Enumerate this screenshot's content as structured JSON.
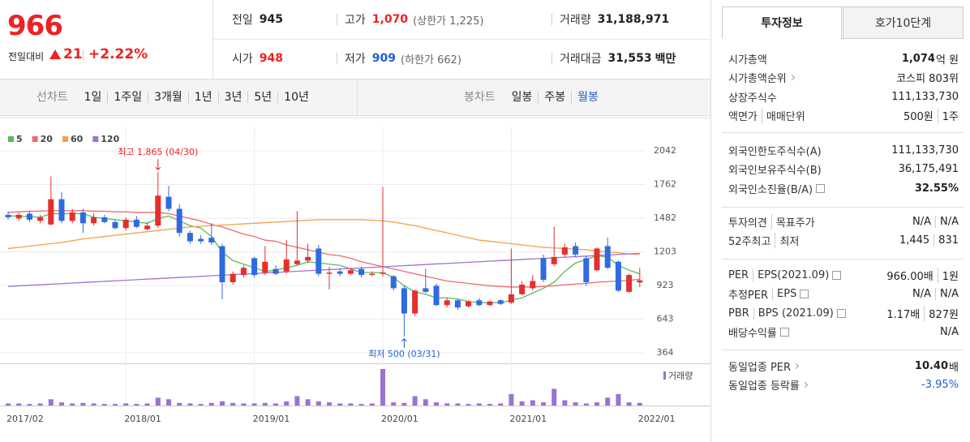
{
  "header": {
    "price": "966",
    "change_label": "전일대비",
    "change": "21",
    "change_pct": "+2.22%",
    "stats": [
      [
        {
          "label": "전일",
          "value": "945"
        },
        {
          "label": "고가",
          "value": "1,070",
          "note": "(상한가 1,225)"
        },
        {
          "label": "거래량",
          "value": "31,188,971"
        }
      ],
      [
        {
          "label": "시가",
          "value": "948"
        },
        {
          "label": "저가",
          "value": "909",
          "note": "(하한가 662)"
        },
        {
          "label": "거래대금",
          "value": "31,553",
          "unit": "백만"
        }
      ]
    ]
  },
  "periods": {
    "line_label": "선차트",
    "line": [
      "1일",
      "1주일",
      "3개월",
      "1년",
      "3년",
      "5년",
      "10년"
    ],
    "candle_label": "봉차트",
    "candle": [
      "일봉",
      "주봉",
      "월봉"
    ]
  },
  "chart_data": {
    "type": "candlestick",
    "categories": [
      "2017/02",
      null,
      null,
      null,
      null,
      null,
      null,
      null,
      null,
      null,
      null,
      "2018/01",
      null,
      null,
      null,
      null,
      null,
      null,
      null,
      null,
      null,
      null,
      null,
      "2019/01",
      null,
      null,
      null,
      null,
      null,
      null,
      null,
      null,
      null,
      null,
      null,
      "2020/01",
      null,
      null,
      null,
      null,
      null,
      null,
      null,
      null,
      null,
      null,
      null,
      "2021/01",
      null,
      null,
      null,
      null,
      null,
      null,
      null,
      null,
      null,
      null,
      null,
      "2022/01"
    ],
    "open": [
      1510,
      1480,
      1520,
      1460,
      1430,
      1640,
      1460,
      1530,
      1440,
      1490,
      1450,
      1400,
      1470,
      1390,
      1420,
      1660,
      1560,
      1360,
      1310,
      1320,
      1250,
      950,
      1010,
      1150,
      1030,
      1060,
      1040,
      1100,
      1130,
      1230,
      1020,
      1040,
      1020,
      1060,
      1010,
      1020,
      1000,
      900,
      690,
      900,
      920,
      760,
      800,
      750,
      800,
      760,
      800,
      780,
      850,
      900,
      1150,
      1100,
      1180,
      1250,
      1150,
      1050,
      1250,
      1120,
      870,
      948
    ],
    "high": [
      1540,
      1530,
      1540,
      1510,
      1830,
      1700,
      1560,
      1560,
      1520,
      1510,
      1470,
      1490,
      1500,
      1450,
      1865,
      1750,
      1600,
      1380,
      1340,
      1440,
      1270,
      1040,
      1090,
      1160,
      1250,
      1090,
      1300,
      1540,
      1270,
      1260,
      1080,
      1060,
      1070,
      1080,
      1040,
      1740,
      1010,
      920,
      890,
      1060,
      940,
      820,
      810,
      800,
      820,
      800,
      810,
      1230,
      960,
      1010,
      1180,
      1410,
      1270,
      1280,
      1170,
      1240,
      1320,
      1130,
      1020,
      1070
    ],
    "low": [
      1470,
      1460,
      1450,
      1440,
      1420,
      1440,
      1440,
      1360,
      1420,
      1440,
      1390,
      1380,
      1400,
      1380,
      1400,
      1540,
      1330,
      1270,
      1270,
      1260,
      810,
      930,
      990,
      990,
      1010,
      1010,
      1020,
      1090,
      1110,
      1000,
      890,
      1000,
      1010,
      990,
      1000,
      1000,
      880,
      500,
      670,
      860,
      750,
      740,
      720,
      740,
      750,
      750,
      760,
      770,
      840,
      880,
      950,
      1080,
      1160,
      1160,
      920,
      1040,
      1060,
      870,
      860,
      909
    ],
    "close": [
      1490,
      1510,
      1470,
      1490,
      1640,
      1460,
      1530,
      1440,
      1490,
      1450,
      1400,
      1470,
      1410,
      1420,
      1670,
      1560,
      1360,
      1290,
      1290,
      1280,
      950,
      1020,
      1070,
      1010,
      1120,
      1020,
      1140,
      1130,
      1160,
      1020,
      1030,
      1020,
      1050,
      1010,
      1020,
      1030,
      900,
      690,
      880,
      870,
      760,
      800,
      740,
      790,
      760,
      790,
      770,
      850,
      930,
      960,
      970,
      1160,
      1240,
      1180,
      950,
      1230,
      1070,
      880,
      1010,
      966
    ],
    "up_color": "#e52e2e",
    "down_color": "#2e6be0",
    "series": [
      {
        "name": "5",
        "color": "#5cb85c",
        "values": [
          1500,
          1500,
          1495,
          1490,
          1520,
          1520,
          1520,
          1520,
          1490,
          1480,
          1470,
          1460,
          1450,
          1440,
          1480,
          1500,
          1460,
          1420,
          1400,
          1330,
          1200,
          1130,
          1100,
          1070,
          1040,
          1050,
          1070,
          1090,
          1120,
          1110,
          1100,
          1090,
          1060,
          1030,
          1030,
          1030,
          990,
          920,
          870,
          850,
          820,
          820,
          810,
          790,
          780,
          780,
          780,
          800,
          820,
          860,
          900,
          950,
          1040,
          1110,
          1140,
          1170,
          1160,
          1090,
          1050,
          1020
        ]
      },
      {
        "name": "20",
        "color": "#f06a6a",
        "values": [
          1530,
          1535,
          1540,
          1540,
          1545,
          1545,
          1545,
          1545,
          1540,
          1540,
          1535,
          1535,
          1530,
          1530,
          1530,
          1520,
          1500,
          1480,
          1460,
          1430,
          1410,
          1380,
          1350,
          1330,
          1300,
          1290,
          1260,
          1240,
          1220,
          1200,
          1180,
          1170,
          1150,
          1120,
          1100,
          1080,
          1060,
          1040,
          1020,
          1000,
          980,
          960,
          950,
          940,
          930,
          920,
          915,
          910,
          910,
          910,
          915,
          920,
          930,
          935,
          940,
          950,
          955,
          960,
          965,
          975
        ]
      },
      {
        "name": "60",
        "color": "#f5a04a",
        "values": [
          1230,
          1240,
          1250,
          1260,
          1270,
          1280,
          1295,
          1310,
          1320,
          1330,
          1340,
          1350,
          1360,
          1370,
          1380,
          1390,
          1400,
          1410,
          1415,
          1420,
          1425,
          1430,
          1435,
          1440,
          1445,
          1450,
          1455,
          1460,
          1465,
          1470,
          1470,
          1470,
          1470,
          1470,
          1465,
          1460,
          1450,
          1435,
          1420,
          1400,
          1380,
          1360,
          1340,
          1320,
          1300,
          1290,
          1280,
          1270,
          1260,
          1250,
          1240,
          1235,
          1230,
          1225,
          1220,
          1210,
          1200,
          1195,
          1185,
          1180
        ]
      },
      {
        "name": "120",
        "color": "#a070d8",
        "values": [
          915,
          920,
          925,
          929,
          934,
          938,
          943,
          948,
          952,
          957,
          962,
          966,
          971,
          976,
          980,
          985,
          990,
          994,
          999,
          1004,
          1008,
          1013,
          1018,
          1022,
          1027,
          1032,
          1036,
          1041,
          1046,
          1050,
          1055,
          1060,
          1064,
          1069,
          1074,
          1078,
          1083,
          1088,
          1092,
          1097,
          1102,
          1106,
          1111,
          1116,
          1120,
          1125,
          1130,
          1134,
          1139,
          1144,
          1148,
          1153,
          1158,
          1162,
          1167,
          1172,
          1176,
          1181,
          1186,
          1190
        ]
      }
    ],
    "volume": {
      "name": "거래량",
      "color": "#9b72cf",
      "values": [
        4,
        4,
        3,
        4,
        12,
        6,
        4,
        5,
        4,
        3,
        3,
        4,
        3,
        4,
        15,
        12,
        5,
        4,
        3,
        5,
        8,
        5,
        4,
        4,
        5,
        4,
        8,
        18,
        12,
        8,
        6,
        4,
        4,
        3,
        4,
        70,
        6,
        5,
        18,
        12,
        6,
        4,
        4,
        3,
        4,
        3,
        4,
        22,
        8,
        10,
        6,
        32,
        10,
        6,
        4,
        6,
        15,
        22,
        6,
        5
      ]
    },
    "high_label": "최고 1,865 (04/30)",
    "low_label": "최저 500 (03/31)",
    "ylim": [
      276,
      2116
    ],
    "yticks": [
      2042,
      1762,
      1482,
      1203,
      923,
      643,
      364
    ],
    "grid": true
  },
  "info": {
    "tabs": [
      "투자정보",
      "호가10단계"
    ],
    "groups": [
      [
        {
          "label": [
            "시가총액"
          ],
          "value": [
            "1,074",
            "억 원"
          ]
        },
        {
          "label": [
            "시가총액순위"
          ],
          "value": [
            "코스피 803위"
          ]
        },
        {
          "label": [
            "상장주식수"
          ],
          "value": [
            "111,133,730"
          ]
        },
        {
          "label": [
            "액면가",
            "매매단위"
          ],
          "value": [
            "500원",
            "1주"
          ]
        }
      ],
      [
        {
          "label": [
            "외국인한도주식수(A)"
          ],
          "value": [
            "111,133,730"
          ]
        },
        {
          "label": [
            "외국인보유주식수(B)"
          ],
          "value": [
            "36,175,491"
          ]
        },
        {
          "label": [
            "외국인소진율(B/A)"
          ],
          "value": [
            "32.55%"
          ]
        }
      ],
      [
        {
          "label": [
            "투자의견",
            "목표주가"
          ],
          "value": [
            "N/A",
            "N/A"
          ]
        },
        {
          "label": [
            "52주최고",
            "최저"
          ],
          "value": [
            "1,445",
            "831"
          ]
        }
      ],
      [
        {
          "label": [
            "PER",
            "EPS(2021.09)"
          ],
          "value": [
            "966.00배",
            "1원"
          ]
        },
        {
          "label": [
            "추정PER",
            "EPS"
          ],
          "value": [
            "N/A",
            "N/A"
          ]
        },
        {
          "label": [
            "PBR",
            "BPS (2021.09)"
          ],
          "value": [
            "1.17배",
            "827원"
          ]
        },
        {
          "label": [
            "배당수익률"
          ],
          "value": [
            "N/A"
          ]
        }
      ],
      [
        {
          "label": [
            "동일업종 PER"
          ],
          "value": [
            "10.40",
            "배"
          ]
        },
        {
          "label": [
            "동일업종 등락률"
          ],
          "value": [
            "-3.95%"
          ]
        }
      ]
    ]
  }
}
